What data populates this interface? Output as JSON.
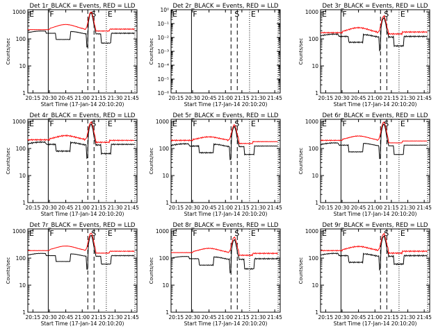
{
  "chart_data": [
    {
      "type": "line",
      "title": "Det 1r_BLACK = Events, RED = LLD",
      "ylabel": "Counts/sec",
      "xlabel": "Start Time (17-Jan-14 20:10:20)",
      "x_ticks": [
        "20:15",
        "20:30",
        "20:45",
        "21:00",
        "21:15",
        "21:30",
        "21:45"
      ],
      "y_ticks": [
        "1",
        "10",
        "100",
        "1000"
      ],
      "yscale": "log",
      "ylim": [
        1,
        1200
      ],
      "xlim": [
        "20:10:20",
        "21:50:00"
      ],
      "markers": [
        {
          "label": "E",
          "time": "20:10"
        },
        {
          "label": "F",
          "time": "20:29"
        },
        {
          "label": "S",
          "time": "21:07"
        },
        {
          "label": "E",
          "time": "21:22"
        }
      ],
      "series": [
        {
          "name": "Events",
          "color": "#000000",
          "levels": {
            "base": 170,
            "dip1": 95,
            "peak": 920,
            "dip2": 70
          }
        },
        {
          "name": "LLD",
          "color": "#ff0000",
          "levels": {
            "base": 220,
            "hump": 340,
            "peak": 1000,
            "tail": 230
          }
        }
      ]
    },
    {
      "type": "line",
      "title": "Det 2r_BLACK = Events, RED = LLD",
      "ylabel": "Counts/sec",
      "xlabel": "Start Time (17-Jan-14 20:10:20)",
      "x_ticks": [
        "20:15",
        "20:30",
        "20:45",
        "21:00",
        "21:15",
        "21:30",
        "21:45"
      ],
      "y_ticks": [
        "10⁻⁶",
        "10⁻⁵",
        "10⁻⁴",
        "10⁻³",
        "10⁻²",
        "10⁻¹",
        "10⁰"
      ],
      "yscale": "log",
      "ylim": [
        1e-06,
        1
      ],
      "xlim": [
        "20:10:20",
        "21:50:00"
      ],
      "markers": [
        {
          "label": "E",
          "time": "20:10"
        },
        {
          "label": "F",
          "time": "20:29"
        },
        {
          "label": "S",
          "time": "21:07"
        },
        {
          "label": "E",
          "time": "21:22"
        }
      ],
      "series": []
    },
    {
      "type": "line",
      "title": "Det 3r_BLACK = Events, RED = LLD",
      "ylabel": "Counts/sec",
      "xlabel": "Start Time (17-Jan-14 20:10:20)",
      "x_ticks": [
        "20:15",
        "20:30",
        "20:45",
        "21:00",
        "21:15",
        "21:30",
        "21:45"
      ],
      "y_ticks": [
        "1",
        "10",
        "100",
        "1000"
      ],
      "yscale": "log",
      "ylim": [
        1,
        1200
      ],
      "xlim": [
        "20:10:20",
        "21:50:00"
      ],
      "markers": [
        {
          "label": "E",
          "time": "20:10"
        },
        {
          "label": "F",
          "time": "20:29"
        },
        {
          "label": "S",
          "time": "21:07"
        },
        {
          "label": "E",
          "time": "21:22"
        }
      ],
      "series": [
        {
          "name": "Events",
          "color": "#000000",
          "levels": {
            "base": 130,
            "dip1": 75,
            "peak": 600,
            "dip2": 55
          }
        },
        {
          "name": "LLD",
          "color": "#ff0000",
          "levels": {
            "base": 170,
            "hump": 260,
            "peak": 700,
            "tail": 180
          }
        }
      ]
    },
    {
      "type": "line",
      "title": "Det 4r_BLACK = Events, RED = LLD",
      "ylabel": "Counts/sec",
      "xlabel": "Start Time (17-Jan-14 20:10:20)",
      "x_ticks": [
        "20:15",
        "20:30",
        "20:45",
        "21:00",
        "21:15",
        "21:30",
        "21:45"
      ],
      "y_ticks": [
        "1",
        "10",
        "100",
        "1000"
      ],
      "yscale": "log",
      "ylim": [
        1,
        1200
      ],
      "xlim": [
        "20:10:20",
        "21:50:00"
      ],
      "markers": [
        {
          "label": "E",
          "time": "20:10"
        },
        {
          "label": "F",
          "time": "20:29"
        },
        {
          "label": "S",
          "time": "21:07"
        },
        {
          "label": "E",
          "time": "21:22"
        }
      ],
      "series": [
        {
          "name": "Events",
          "color": "#000000",
          "levels": {
            "base": 150,
            "dip1": 80,
            "peak": 800,
            "dip2": 65
          }
        },
        {
          "name": "LLD",
          "color": "#ff0000",
          "levels": {
            "base": 210,
            "hump": 300,
            "peak": 950,
            "tail": 200
          }
        }
      ]
    },
    {
      "type": "line",
      "title": "Det 5r_BLACK = Events, RED = LLD",
      "ylabel": "Counts/sec",
      "xlabel": "Start Time (17-Jan-14 20:10:20)",
      "x_ticks": [
        "20:15",
        "20:30",
        "20:45",
        "21:00",
        "21:15",
        "21:30",
        "21:45"
      ],
      "y_ticks": [
        "1",
        "10",
        "100",
        "1000"
      ],
      "yscale": "log",
      "ylim": [
        1,
        1200
      ],
      "xlim": [
        "20:10:20",
        "21:50:00"
      ],
      "markers": [
        {
          "label": "E",
          "time": "20:10"
        },
        {
          "label": "F",
          "time": "20:29"
        },
        {
          "label": "S",
          "time": "21:07"
        },
        {
          "label": "E",
          "time": "21:22"
        }
      ],
      "series": [
        {
          "name": "Events",
          "color": "#000000",
          "levels": {
            "base": 130,
            "dip1": 70,
            "peak": 650,
            "dip2": 60
          }
        },
        {
          "name": "LLD",
          "color": "#ff0000",
          "levels": {
            "base": 200,
            "hump": 270,
            "peak": 750,
            "tail": 180
          }
        }
      ]
    },
    {
      "type": "line",
      "title": "Det 6r_BLACK = Events, RED = LLD",
      "ylabel": "Counts/sec",
      "xlabel": "Start Time (17-Jan-14 20:10:20)",
      "x_ticks": [
        "20:15",
        "20:30",
        "20:45",
        "21:00",
        "21:15",
        "21:30",
        "21:45"
      ],
      "y_ticks": [
        "1",
        "10",
        "100",
        "1000"
      ],
      "yscale": "log",
      "ylim": [
        1,
        1200
      ],
      "xlim": [
        "20:10:20",
        "21:50:00"
      ],
      "markers": [
        {
          "label": "E",
          "time": "20:10"
        },
        {
          "label": "F",
          "time": "20:29"
        },
        {
          "label": "S",
          "time": "21:07"
        },
        {
          "label": "E",
          "time": "21:22"
        }
      ],
      "series": [
        {
          "name": "Events",
          "color": "#000000",
          "levels": {
            "base": 140,
            "dip1": 75,
            "peak": 800,
            "dip2": 60
          }
        },
        {
          "name": "LLD",
          "color": "#ff0000",
          "levels": {
            "base": 200,
            "hump": 290,
            "peak": 950,
            "tail": 190
          }
        }
      ]
    },
    {
      "type": "line",
      "title": "Det 7r_BLACK = Events, RED = LLD",
      "ylabel": "Counts/sec",
      "xlabel": "Start Time (17-Jan-14 20:10:20)",
      "x_ticks": [
        "20:15",
        "20:30",
        "20:45",
        "21:00",
        "21:15",
        "21:30",
        "21:45"
      ],
      "y_ticks": [
        "1",
        "10",
        "100",
        "1000"
      ],
      "yscale": "log",
      "ylim": [
        1,
        1200
      ],
      "xlim": [
        "20:10:20",
        "21:50:00"
      ],
      "markers": [
        {
          "label": "E",
          "time": "20:10"
        },
        {
          "label": "F",
          "time": "20:29"
        },
        {
          "label": "S",
          "time": "21:07"
        },
        {
          "label": "E",
          "time": "21:22"
        }
      ],
      "series": [
        {
          "name": "Events",
          "color": "#000000",
          "levels": {
            "base": 130,
            "dip1": 75,
            "peak": 700,
            "dip2": 60
          }
        },
        {
          "name": "LLD",
          "color": "#ff0000",
          "levels": {
            "base": 190,
            "hump": 280,
            "peak": 850,
            "tail": 180
          }
        }
      ]
    },
    {
      "type": "line",
      "title": "Det 8r_BLACK = Events, RED = LLD",
      "ylabel": "Counts/sec",
      "xlabel": "Start Time (17-Jan-14 20:10:20)",
      "x_ticks": [
        "20:15",
        "20:30",
        "20:45",
        "21:00",
        "21:15",
        "21:30",
        "21:45"
      ],
      "y_ticks": [
        "1",
        "10",
        "100",
        "1000"
      ],
      "yscale": "log",
      "ylim": [
        1,
        1200
      ],
      "xlim": [
        "20:10:20",
        "21:50:00"
      ],
      "markers": [
        {
          "label": "E",
          "time": "20:10"
        },
        {
          "label": "F",
          "time": "20:29"
        },
        {
          "label": "S",
          "time": "21:07"
        },
        {
          "label": "E",
          "time": "21:22"
        }
      ],
      "series": [
        {
          "name": "Events",
          "color": "#000000",
          "levels": {
            "base": 100,
            "dip1": 55,
            "peak": 480,
            "dip2": 40
          }
        },
        {
          "name": "LLD",
          "color": "#ff0000",
          "levels": {
            "base": 160,
            "hump": 230,
            "peak": 600,
            "tail": 150
          }
        }
      ]
    },
    {
      "type": "line",
      "title": "Det 9r_BLACK = Events, RED = LLD",
      "ylabel": "Counts/sec",
      "xlabel": "Start Time (17-Jan-14 20:10:20)",
      "x_ticks": [
        "20:15",
        "20:30",
        "20:45",
        "21:00",
        "21:15",
        "21:30",
        "21:45"
      ],
      "y_ticks": [
        "1",
        "10",
        "100",
        "1000"
      ],
      "yscale": "log",
      "ylim": [
        1,
        1200
      ],
      "xlim": [
        "20:10:20",
        "21:50:00"
      ],
      "markers": [
        {
          "label": "E",
          "time": "20:10"
        },
        {
          "label": "F",
          "time": "20:29"
        },
        {
          "label": "S",
          "time": "21:07"
        },
        {
          "label": "E",
          "time": "21:22"
        }
      ],
      "series": [
        {
          "name": "Events",
          "color": "#000000",
          "levels": {
            "base": 130,
            "dip1": 70,
            "peak": 650,
            "dip2": 60
          }
        },
        {
          "name": "LLD",
          "color": "#ff0000",
          "levels": {
            "base": 190,
            "hump": 270,
            "peak": 800,
            "tail": 180
          }
        }
      ]
    }
  ]
}
